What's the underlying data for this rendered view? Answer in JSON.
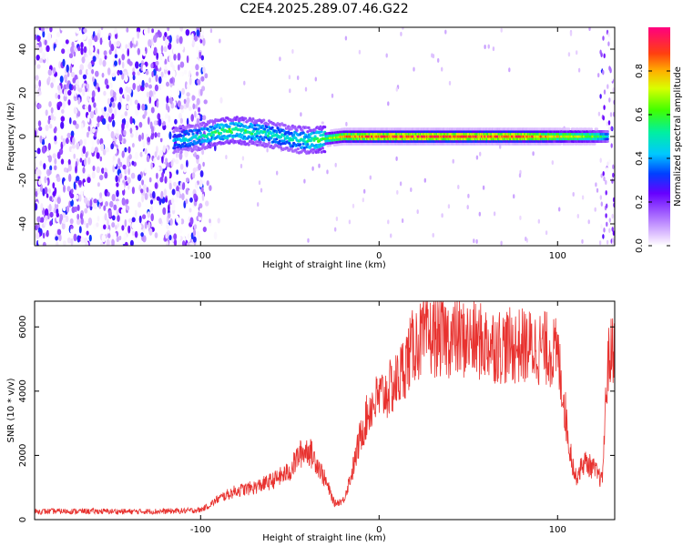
{
  "title": "C2E4.2025.289.07.46.G22",
  "chart_data": [
    {
      "type": "heatmap",
      "xlabel": "Height of straight line (km)",
      "ylabel": "Frequency (Hz)",
      "xlim": [
        -193,
        132
      ],
      "ylim": [
        -50,
        50
      ],
      "xticks": [
        -100,
        0,
        100
      ],
      "yticks": [
        -40,
        -20,
        0,
        20,
        40
      ],
      "colorbar": {
        "label": "Normalized spectral amplitude",
        "range": [
          0,
          1
        ],
        "ticks": [
          0.0,
          0.2,
          0.4,
          0.6,
          0.8
        ]
      },
      "description_series": [
        {
          "name": "noise region",
          "x_range": [
            -193,
            -98
          ],
          "freq_range": [
            -50,
            50
          ],
          "amplitude": 0.15
        },
        {
          "name": "signal trace",
          "x": [
            -115,
            -100,
            -90,
            -80,
            -70,
            -60,
            -50,
            -40,
            -30,
            -20,
            0,
            20,
            50,
            80,
            100,
            120,
            128
          ],
          "freq": [
            -2,
            0,
            2,
            3,
            2,
            1,
            -1,
            -2,
            -1,
            0,
            0,
            0,
            0,
            0,
            0,
            0,
            0
          ],
          "amplitude": [
            0.45,
            0.5,
            0.6,
            0.6,
            0.55,
            0.5,
            0.5,
            0.55,
            0.65,
            0.85,
            0.95,
            0.97,
            0.97,
            0.95,
            0.8,
            0.7,
            0.5
          ]
        }
      ]
    },
    {
      "type": "line",
      "xlabel": "Height of straight line (km)",
      "ylabel": "SNR (10 * v/v)",
      "xlim": [
        -193,
        132
      ],
      "ylim": [
        0,
        6800
      ],
      "xticks": [
        -100,
        0,
        100
      ],
      "yticks": [
        0,
        2000,
        4000,
        6000
      ],
      "series": [
        {
          "name": "SNR",
          "color": "#e8322f",
          "x": [
            -193,
            -180,
            -160,
            -140,
            -120,
            -105,
            -100,
            -95,
            -90,
            -80,
            -70,
            -60,
            -50,
            -45,
            -40,
            -35,
            -30,
            -25,
            -20,
            -15,
            -10,
            -5,
            0,
            5,
            10,
            15,
            20,
            25,
            30,
            40,
            50,
            60,
            70,
            80,
            90,
            95,
            100,
            103,
            106,
            110,
            115,
            120,
            125,
            128,
            132
          ],
          "y": [
            250,
            260,
            260,
            250,
            260,
            280,
            300,
            450,
            650,
            900,
            1000,
            1200,
            1500,
            2000,
            2200,
            1800,
            1200,
            500,
            600,
            1500,
            2700,
            3500,
            3800,
            4000,
            4300,
            4900,
            5500,
            5600,
            5700,
            5650,
            5600,
            5500,
            5400,
            5400,
            5350,
            5300,
            5100,
            4000,
            2500,
            1300,
            1800,
            1600,
            1200,
            4800,
            5600
          ]
        }
      ]
    }
  ],
  "colors": {
    "line": "#e8322f",
    "background": "#ffffff"
  }
}
